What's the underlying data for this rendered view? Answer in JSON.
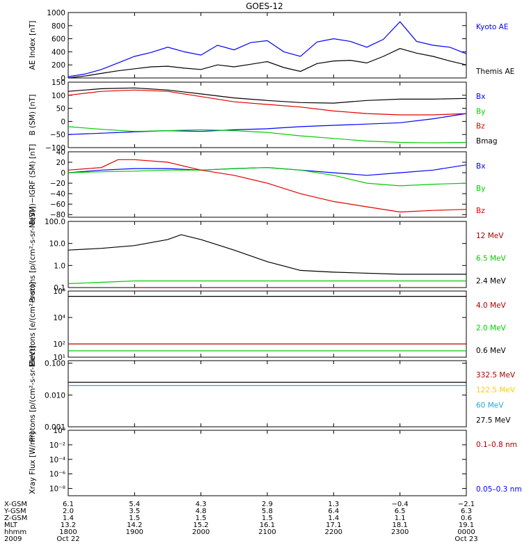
{
  "title": "GOES-12",
  "colors": {
    "blue": "#0000ff",
    "black": "#000000",
    "red": "#e00000",
    "green": "#00cc00",
    "darkred": "#aa0000",
    "yellow": "#ffcc00",
    "cyan": "#1fa8dc"
  },
  "chart_data": [
    {
      "type": "line",
      "ylabel": "AE Index [nT]",
      "ylim": [
        0,
        1000
      ],
      "yticks": [
        {
          "v": 0,
          "t": "0"
        },
        {
          "v": 200,
          "t": "200"
        },
        {
          "v": 400,
          "t": "400"
        },
        {
          "v": 600,
          "t": "600"
        },
        {
          "v": 800,
          "t": "800"
        },
        {
          "v": 1000,
          "t": "1000"
        }
      ],
      "series": [
        {
          "name": "Kyoto AE",
          "color": "blue",
          "x": [
            0,
            0.25,
            0.5,
            0.75,
            1.0,
            1.25,
            1.5,
            1.75,
            2.0,
            2.25,
            2.5,
            2.75,
            3.0,
            3.25,
            3.5,
            3.75,
            4.0,
            4.25,
            4.5,
            4.75,
            5.0,
            5.25,
            5.5,
            5.75,
            6.0
          ],
          "y": [
            20,
            60,
            130,
            230,
            330,
            390,
            470,
            400,
            350,
            500,
            430,
            540,
            570,
            400,
            330,
            550,
            600,
            560,
            470,
            590,
            860,
            560,
            500,
            470,
            370
          ]
        },
        {
          "name": "Themis AE",
          "color": "black",
          "x": [
            0,
            0.25,
            0.5,
            0.75,
            1.0,
            1.25,
            1.5,
            1.75,
            2.0,
            2.25,
            2.5,
            2.75,
            3.0,
            3.25,
            3.5,
            3.75,
            4.0,
            4.25,
            4.5,
            4.75,
            5.0,
            5.25,
            5.5,
            5.75,
            6.0
          ],
          "y": [
            0,
            30,
            70,
            110,
            140,
            170,
            180,
            150,
            130,
            200,
            170,
            210,
            250,
            160,
            100,
            220,
            260,
            270,
            230,
            330,
            450,
            380,
            330,
            260,
            200
          ]
        }
      ]
    },
    {
      "type": "line",
      "ylabel": "B (SM) [nT]",
      "ylim": [
        -100,
        150
      ],
      "yticks": [
        {
          "v": -100,
          "t": "−100"
        },
        {
          "v": -50,
          "t": "−50"
        },
        {
          "v": 0,
          "t": "0"
        },
        {
          "v": 50,
          "t": "50"
        },
        {
          "v": 100,
          "t": "100"
        },
        {
          "v": 150,
          "t": "150"
        }
      ],
      "series": [
        {
          "name": "Bx",
          "color": "blue",
          "x": [
            0,
            0.5,
            1.0,
            1.5,
            2.0,
            2.5,
            3.0,
            3.5,
            4.0,
            4.5,
            5.0,
            5.5,
            6.0
          ],
          "y": [
            -50,
            -45,
            -40,
            -35,
            -38,
            -32,
            -28,
            -20,
            -15,
            -10,
            -5,
            10,
            30
          ]
        },
        {
          "name": "By",
          "color": "green",
          "x": [
            0,
            0.5,
            1.0,
            1.5,
            2.0,
            2.5,
            3.0,
            3.5,
            4.0,
            4.5,
            5.0,
            5.5,
            6.0
          ],
          "y": [
            -20,
            -30,
            -38,
            -35,
            -32,
            -35,
            -42,
            -55,
            -65,
            -75,
            -80,
            -82,
            -80
          ]
        },
        {
          "name": "Bz",
          "color": "red",
          "x": [
            0,
            0.5,
            1.0,
            1.5,
            2.0,
            2.5,
            3.0,
            3.5,
            4.0,
            4.5,
            5.0,
            5.5,
            6.0
          ],
          "y": [
            100,
            115,
            120,
            115,
            95,
            75,
            65,
            55,
            40,
            30,
            25,
            25,
            30
          ]
        },
        {
          "name": "Bmag",
          "color": "black",
          "x": [
            0,
            0.5,
            1.0,
            1.5,
            2.0,
            2.5,
            3.0,
            3.5,
            4.0,
            4.5,
            5.0,
            5.5,
            6.0
          ],
          "y": [
            115,
            125,
            128,
            120,
            105,
            90,
            80,
            72,
            70,
            80,
            85,
            85,
            88
          ]
        }
      ]
    },
    {
      "type": "line",
      "ylabel": "B(SM)−IGRF (SM) [nT]",
      "ylim": [
        -85,
        40
      ],
      "yticks": [
        {
          "v": -80,
          "t": "−80"
        },
        {
          "v": -60,
          "t": "−60"
        },
        {
          "v": -40,
          "t": "−40"
        },
        {
          "v": -20,
          "t": "−20"
        },
        {
          "v": 0,
          "t": "0"
        },
        {
          "v": 20,
          "t": "20"
        },
        {
          "v": 40,
          "t": "40"
        }
      ],
      "series": [
        {
          "name": "Bx",
          "color": "blue",
          "x": [
            0,
            0.5,
            1.0,
            1.5,
            2.0,
            2.5,
            3.0,
            3.5,
            4.0,
            4.5,
            5.0,
            5.5,
            6.0
          ],
          "y": [
            0,
            5,
            8,
            8,
            5,
            8,
            10,
            5,
            0,
            -5,
            0,
            5,
            15
          ]
        },
        {
          "name": "By",
          "color": "green",
          "x": [
            0,
            0.5,
            1.0,
            1.5,
            2.0,
            2.5,
            3.0,
            3.5,
            4.0,
            4.5,
            5.0,
            5.5,
            6.0
          ],
          "y": [
            0,
            2,
            3,
            5,
            5,
            8,
            10,
            5,
            -5,
            -20,
            -25,
            -22,
            -20
          ]
        },
        {
          "name": "Bz",
          "color": "red",
          "x": [
            0,
            0.5,
            0.75,
            1.0,
            1.5,
            2.0,
            2.5,
            3.0,
            3.5,
            4.0,
            4.5,
            5.0,
            5.5,
            6.0
          ],
          "y": [
            5,
            10,
            25,
            25,
            20,
            5,
            -5,
            -20,
            -40,
            -55,
            -65,
            -75,
            -72,
            -70
          ]
        }
      ]
    },
    {
      "type": "line",
      "ylabel": "Protons [p/(cm²-s-sr-MeV)]",
      "yscale": "log",
      "ylim": [
        0.1,
        100
      ],
      "yticks": [
        {
          "v": 0.1,
          "t": "0.1"
        },
        {
          "v": 1,
          "t": "1.0"
        },
        {
          "v": 10,
          "t": "10.0"
        },
        {
          "v": 100,
          "t": "100.0"
        }
      ],
      "series": [
        {
          "name": "12 MeV",
          "color": "darkred",
          "x": [
            1.0,
            2.0,
            3.0,
            4.0,
            5.0
          ],
          "y": [
            0.1,
            0.1,
            0.1,
            0.1,
            0.1
          ]
        },
        {
          "name": "6.5 MeV",
          "color": "green",
          "x": [
            0,
            1.0,
            2.0,
            3.0,
            4.0,
            5.0,
            6.0
          ],
          "y": [
            0.15,
            0.2,
            0.2,
            0.2,
            0.2,
            0.2,
            0.2
          ]
        },
        {
          "name": "2.4 MeV",
          "color": "black",
          "x": [
            0,
            0.5,
            1.0,
            1.5,
            1.7,
            2.0,
            2.5,
            3.0,
            3.5,
            4.0,
            5.0,
            6.0
          ],
          "y": [
            5,
            6,
            8,
            15,
            25,
            15,
            5,
            1.5,
            0.6,
            0.5,
            0.4,
            0.4
          ]
        }
      ]
    },
    {
      "type": "line",
      "ylabel": "Electrons [e/(cm²-s-sr)]",
      "yscale": "log",
      "ylim": [
        10,
        1000000
      ],
      "yticks": [
        {
          "v": 10,
          "t": "10¹"
        },
        {
          "v": 100,
          "t": "10²"
        },
        {
          "v": 10000,
          "t": "10⁴"
        },
        {
          "v": 1000000,
          "t": "10⁶"
        }
      ],
      "series": [
        {
          "name": "4.0 MeV",
          "color": "darkred",
          "x": [
            0,
            6.0
          ],
          "y": [
            100,
            100
          ]
        },
        {
          "name": "2.0 MeV",
          "color": "green",
          "x": [
            0,
            6.0
          ],
          "y": [
            30,
            30
          ]
        },
        {
          "name": "0.6 MeV",
          "color": "black",
          "x": [
            0,
            6.0
          ],
          "y": [
            400000,
            400000
          ]
        }
      ]
    },
    {
      "type": "line",
      "ylabel": "Protons [p/(cm²-s-sr-MeV)]",
      "yscale": "log",
      "ylim": [
        0.001,
        0.12
      ],
      "yticks": [
        {
          "v": 0.001,
          "t": "0.001"
        },
        {
          "v": 0.01,
          "t": "0.010"
        },
        {
          "v": 0.1,
          "t": "0.100"
        }
      ],
      "series": [
        {
          "name": "332.5 MeV",
          "color": "darkred",
          "x": [],
          "y": []
        },
        {
          "name": "122.5 MeV",
          "color": "yellow",
          "x": [],
          "y": []
        },
        {
          "name": "60 MeV",
          "color": "cyan",
          "x": [
            0,
            6.0
          ],
          "y": [
            0.02,
            0.02
          ]
        },
        {
          "name": "27.5 MeV",
          "color": "black",
          "x": [
            0,
            6.0
          ],
          "y": [
            0.025,
            0.025
          ]
        }
      ]
    },
    {
      "type": "line",
      "ylabel": "Xray Flux [W/m²]",
      "yscale": "log",
      "ylim": [
        1e-09,
        1
      ],
      "yticks": [
        {
          "v": 1e-08,
          "t": "10⁻⁸"
        },
        {
          "v": 1e-06,
          "t": "10⁻⁶"
        },
        {
          "v": 0.0001,
          "t": "10⁻⁴"
        },
        {
          "v": 0.01,
          "t": "10⁻²"
        },
        {
          "v": 1,
          "t": "10⁰"
        }
      ],
      "series": [
        {
          "name": "0.1–0.8 nm",
          "color": "darkred",
          "x": [],
          "y": []
        },
        {
          "name": "0.05–0.3 nm",
          "color": "blue",
          "x": [],
          "y": []
        }
      ]
    }
  ],
  "xaxis": {
    "row_labels": [
      "X-GSM",
      "Y-GSM",
      "Z-GSM",
      "MLT",
      "hhmm",
      "2009"
    ],
    "columns": [
      {
        "x": 0,
        "vals": [
          "6.1",
          "2.0",
          "1.4",
          "13.2",
          "1800",
          "Oct 22"
        ]
      },
      {
        "x": 1,
        "vals": [
          "5.4",
          "3.5",
          "1.5",
          "14.2",
          "1900",
          ""
        ]
      },
      {
        "x": 2,
        "vals": [
          "4.3",
          "4.8",
          "1.5",
          "15.2",
          "2000",
          ""
        ]
      },
      {
        "x": 3,
        "vals": [
          "2.9",
          "5.8",
          "1.5",
          "16.1",
          "2100",
          ""
        ]
      },
      {
        "x": 4,
        "vals": [
          "1.3",
          "6.4",
          "1.4",
          "17.1",
          "2200",
          ""
        ]
      },
      {
        "x": 5,
        "vals": [
          "−0.4",
          "6.5",
          "1.1",
          "18.1",
          "2300",
          ""
        ]
      },
      {
        "x": 6,
        "vals": [
          "−2.1",
          "6.3",
          "0.6",
          "19.1",
          "0000",
          "Oct 23"
        ]
      }
    ]
  }
}
